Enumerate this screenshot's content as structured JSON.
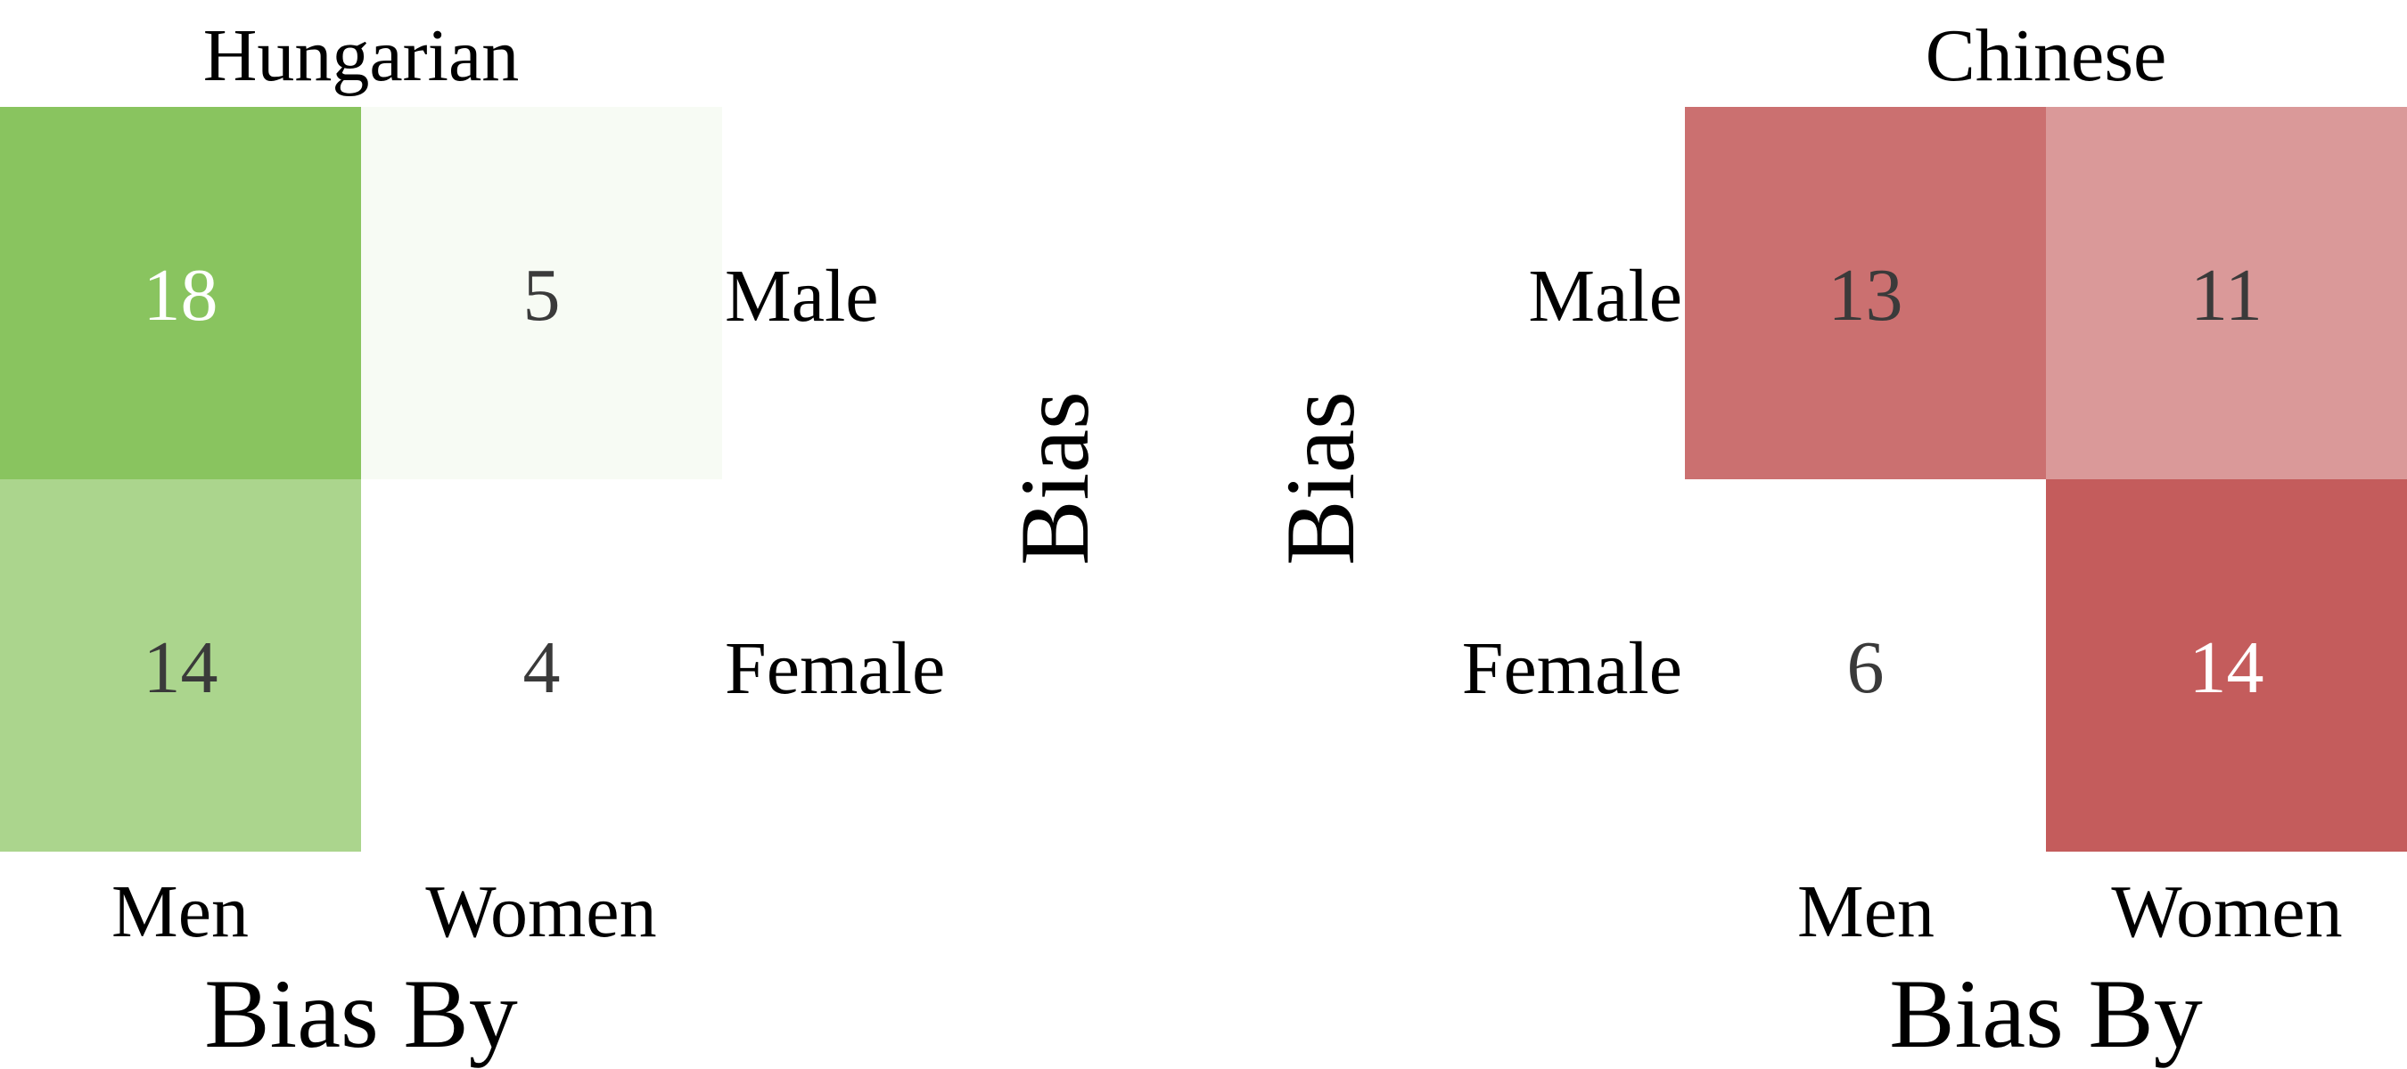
{
  "chart_data": [
    {
      "type": "heatmap",
      "title": "Hungarian",
      "xlabel": "Bias By",
      "ylabel": "Bias",
      "x_categories": [
        "Men",
        "Women"
      ],
      "y_categories": [
        "Male",
        "Female"
      ],
      "ytick_side": "right",
      "values": [
        [
          18,
          5
        ],
        [
          14,
          4
        ]
      ],
      "colormap": "greens",
      "color_low": "#ffffff",
      "color_high": "#89c45f"
    },
    {
      "type": "heatmap",
      "title": "Chinese",
      "xlabel": "Bias By",
      "ylabel": "Bias",
      "x_categories": [
        "Men",
        "Women"
      ],
      "y_categories": [
        "Male",
        "Female"
      ],
      "ytick_side": "left",
      "values": [
        [
          13,
          11
        ],
        [
          6,
          14
        ]
      ],
      "colormap": "reds",
      "color_low": "#ffffff",
      "color_high": "#c45c5c"
    }
  ]
}
